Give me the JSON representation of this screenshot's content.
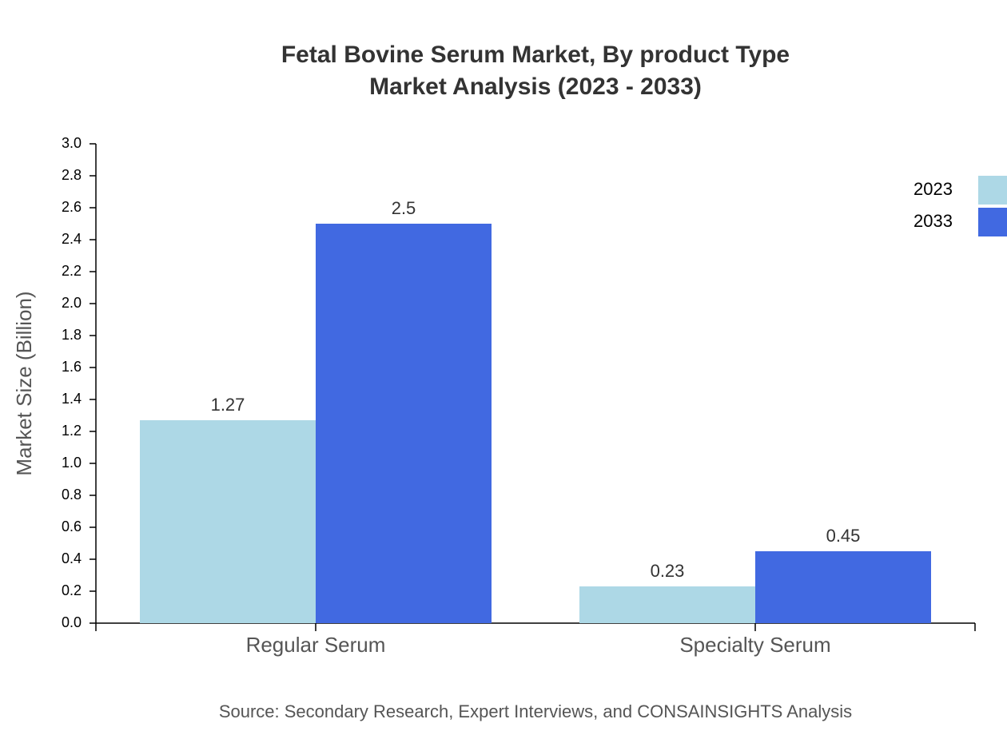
{
  "chart_data": {
    "type": "bar",
    "title": "Fetal Bovine Serum Market, By product Type",
    "subtitle": "Market Analysis (2023 - 2033)",
    "y_label": "Market Size (Billion)",
    "source": "Source: Secondary Research, Expert Interviews, and CONSAINSIGHTS Analysis",
    "categories": [
      "Regular Serum",
      "Specialty Serum"
    ],
    "series": [
      {
        "name": "2023",
        "color": "#add8e6",
        "values": [
          1.27,
          0.23
        ]
      },
      {
        "name": "2033",
        "color": "#4169e1",
        "values": [
          2.5,
          0.45
        ]
      }
    ],
    "ylim": [
      0,
      3
    ],
    "yticks": [
      {
        "value": 0,
        "label": "0.0"
      },
      0.2,
      0.4,
      0.6,
      0.8,
      {
        "value": 1,
        "label": "1.0"
      },
      1.2,
      1.4,
      1.6,
      1.8,
      {
        "value": 2,
        "label": "2.0"
      },
      2.2,
      2.4,
      2.6,
      2.8,
      {
        "value": 3,
        "label": "3.0"
      }
    ],
    "legend": "top-right",
    "grid": false
  }
}
